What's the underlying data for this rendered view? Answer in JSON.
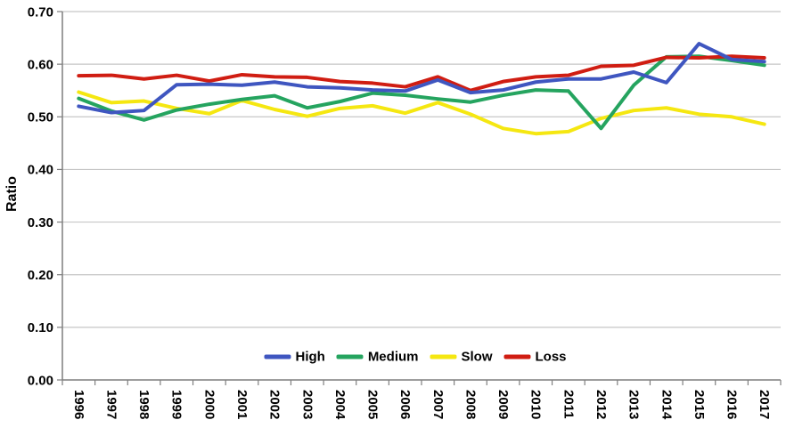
{
  "chart_data": {
    "type": "line",
    "title": "",
    "xlabel": "",
    "ylabel": "Ratio",
    "ylim": [
      0,
      0.7
    ],
    "ytick_step": 0.1,
    "ytick_decimals": 2,
    "grid": "horizontal",
    "legend_position": "bottom-center-inside",
    "categories": [
      "1996",
      "1997",
      "1998",
      "1999",
      "2000",
      "2001",
      "2002",
      "2003",
      "2004",
      "2005",
      "2006",
      "2007",
      "2008",
      "2009",
      "2010",
      "2011",
      "2012",
      "2013",
      "2014",
      "2015",
      "2016",
      "2017"
    ],
    "series": [
      {
        "name": "High",
        "color": "#3F56C0",
        "values": [
          0.52,
          0.508,
          0.512,
          0.561,
          0.562,
          0.56,
          0.566,
          0.557,
          0.555,
          0.551,
          0.549,
          0.57,
          0.546,
          0.551,
          0.566,
          0.572,
          0.572,
          0.585,
          0.565,
          0.639,
          0.609,
          0.605
        ]
      },
      {
        "name": "Medium",
        "color": "#25A45F",
        "values": [
          0.535,
          0.511,
          0.494,
          0.513,
          0.524,
          0.533,
          0.54,
          0.517,
          0.529,
          0.545,
          0.541,
          0.534,
          0.528,
          0.541,
          0.551,
          0.549,
          0.478,
          0.56,
          0.614,
          0.615,
          0.607,
          0.598
        ]
      },
      {
        "name": "Slow",
        "color": "#F5E711",
        "values": [
          0.547,
          0.527,
          0.53,
          0.516,
          0.506,
          0.531,
          0.514,
          0.501,
          0.516,
          0.521,
          0.507,
          0.527,
          0.505,
          0.478,
          0.468,
          0.472,
          0.497,
          0.512,
          0.517,
          0.505,
          0.5,
          0.486
        ]
      },
      {
        "name": "Loss",
        "color": "#D01D12",
        "values": [
          0.578,
          0.579,
          0.572,
          0.579,
          0.568,
          0.58,
          0.576,
          0.575,
          0.567,
          0.564,
          0.557,
          0.576,
          0.55,
          0.567,
          0.576,
          0.579,
          0.596,
          0.598,
          0.613,
          0.612,
          0.615,
          0.612
        ]
      }
    ]
  },
  "colors": {
    "gridline": "#C6C6C6",
    "axis": "#7F7F7F",
    "text": "#000000",
    "background": "#FFFFFF"
  }
}
